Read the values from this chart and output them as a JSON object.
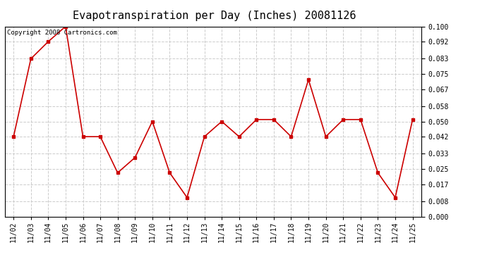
{
  "title": "Evapotranspiration per Day (Inches) 20081126",
  "copyright": "Copyright 2008 Cartronics.com",
  "x_labels": [
    "11/02",
    "11/03",
    "11/04",
    "11/05",
    "11/06",
    "11/07",
    "11/08",
    "11/09",
    "11/10",
    "11/11",
    "11/12",
    "11/13",
    "11/14",
    "11/15",
    "11/16",
    "11/17",
    "11/18",
    "11/19",
    "11/20",
    "11/21",
    "11/22",
    "11/23",
    "11/24",
    "11/25"
  ],
  "y_values": [
    0.042,
    0.083,
    0.092,
    0.1,
    0.042,
    0.042,
    0.023,
    0.031,
    0.05,
    0.023,
    0.01,
    0.042,
    0.05,
    0.042,
    0.051,
    0.051,
    0.042,
    0.072,
    0.042,
    0.051,
    0.051,
    0.023,
    0.01,
    0.051
  ],
  "line_color": "#cc0000",
  "marker": "s",
  "marker_size": 2.5,
  "background_color": "#ffffff",
  "grid_color": "#cccccc",
  "ylim": [
    0.0,
    0.1
  ],
  "yticks": [
    0.0,
    0.008,
    0.017,
    0.025,
    0.033,
    0.042,
    0.05,
    0.058,
    0.067,
    0.075,
    0.083,
    0.092,
    0.1
  ],
  "title_fontsize": 11,
  "tick_fontsize": 7,
  "copyright_fontsize": 6.5,
  "line_width": 1.2
}
